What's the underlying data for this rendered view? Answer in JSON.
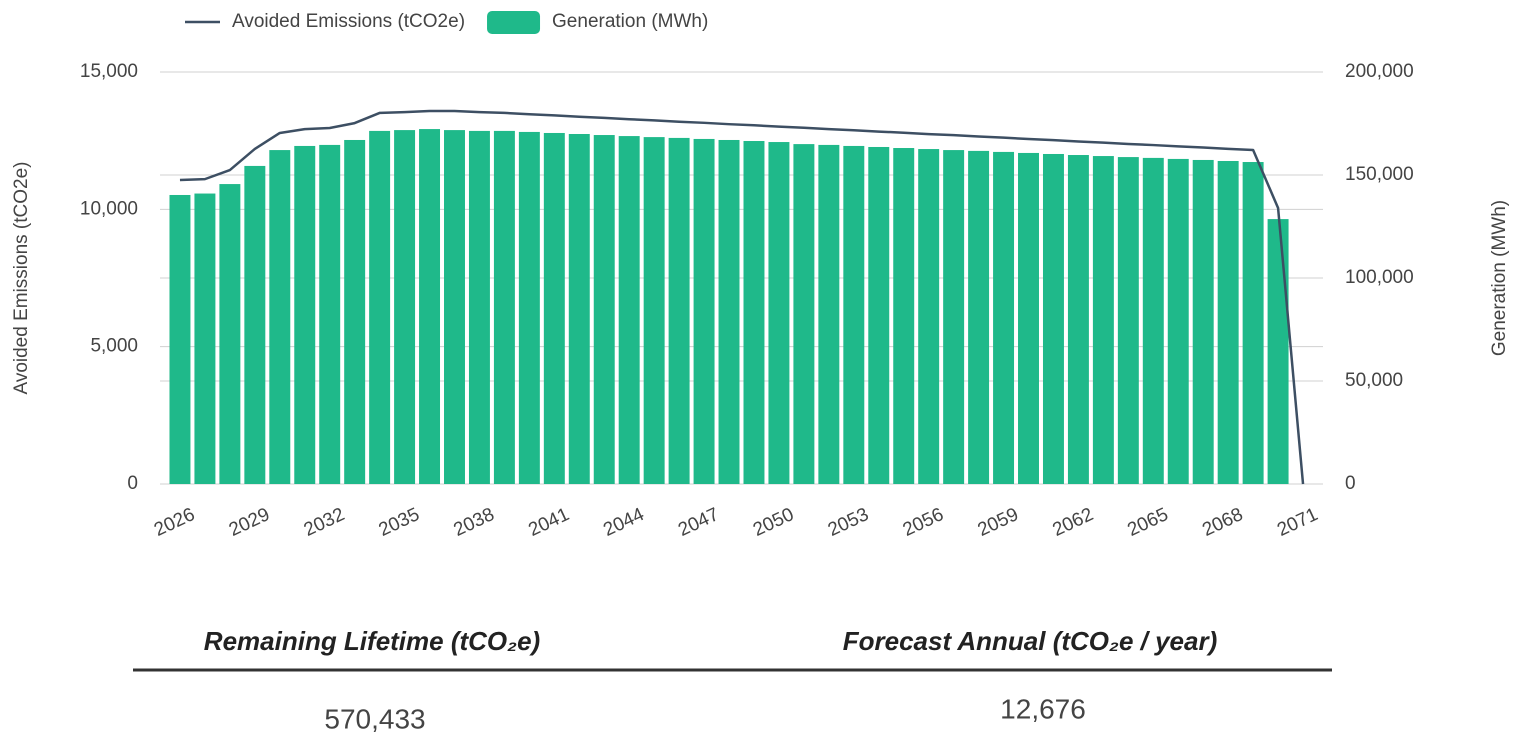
{
  "chart_data": {
    "type": "bar",
    "x": [
      2026,
      2027,
      2028,
      2029,
      2030,
      2031,
      2032,
      2033,
      2034,
      2035,
      2036,
      2037,
      2038,
      2039,
      2040,
      2041,
      2042,
      2043,
      2044,
      2045,
      2046,
      2047,
      2048,
      2049,
      2050,
      2051,
      2052,
      2053,
      2054,
      2055,
      2056,
      2057,
      2058,
      2059,
      2060,
      2061,
      2062,
      2063,
      2064,
      2065,
      2066,
      2067,
      2068,
      2069,
      2070,
      2071
    ],
    "xticks": [
      2026,
      2029,
      2032,
      2035,
      2038,
      2041,
      2044,
      2047,
      2050,
      2053,
      2056,
      2059,
      2062,
      2065,
      2068,
      2071
    ],
    "xlim": [
      2025.2,
      2071.8
    ],
    "series": [
      {
        "name": "Avoided Emissions (tCO2e)",
        "type": "line",
        "color": "#3d4f63",
        "values": [
          11070,
          11100,
          11430,
          12200,
          12780,
          12920,
          12960,
          13140,
          13510,
          13540,
          13580,
          13580,
          13540,
          13510,
          13460,
          13420,
          13370,
          13330,
          13280,
          13240,
          13190,
          13150,
          13100,
          13060,
          13010,
          12970,
          12920,
          12880,
          12830,
          12790,
          12740,
          12700,
          12650,
          12610,
          12560,
          12520,
          12470,
          12430,
          12380,
          12340,
          12290,
          12250,
          12200,
          12160,
          10050,
          0
        ]
      },
      {
        "name": "Generation (MWh)",
        "type": "bar",
        "axis": "y2",
        "color": "#1fb98a",
        "values": [
          140300,
          141000,
          145600,
          154400,
          162100,
          164100,
          164600,
          167000,
          171400,
          171800,
          172300,
          171800,
          171400,
          171400,
          170900,
          170400,
          169900,
          169400,
          168900,
          168400,
          168000,
          167500,
          167000,
          166500,
          166000,
          165000,
          164600,
          164100,
          163600,
          163100,
          162600,
          162100,
          161700,
          161200,
          160700,
          160200,
          159700,
          159200,
          158700,
          158300,
          157800,
          157300,
          156800,
          156300,
          128600,
          0
        ]
      }
    ],
    "ylabel": "Avoided Emissions (tCO2e)",
    "y2label": "Generation (MWh)",
    "ylim": [
      0,
      15000
    ],
    "yticks": [
      0,
      {
        "value": 5000,
        "label": "5,000"
      },
      {
        "value": 10000,
        "label": "10,000"
      },
      {
        "value": 15000,
        "label": "15,000"
      }
    ],
    "y2lim": [
      0,
      200000
    ],
    "y2ticks": [
      0,
      {
        "value": 50000,
        "label": "50,000"
      },
      {
        "value": 100000,
        "label": "100,000"
      },
      {
        "value": 150000,
        "label": "150,000"
      },
      {
        "value": 200000,
        "label": "200,000"
      }
    ],
    "grid": true,
    "legend": "top"
  },
  "stats": [
    {
      "label": "Remaining Lifetime (tCO₂e)",
      "value": "570,433"
    },
    {
      "label": "Forecast Annual (tCO₂e / year)",
      "value": "12,676"
    }
  ]
}
